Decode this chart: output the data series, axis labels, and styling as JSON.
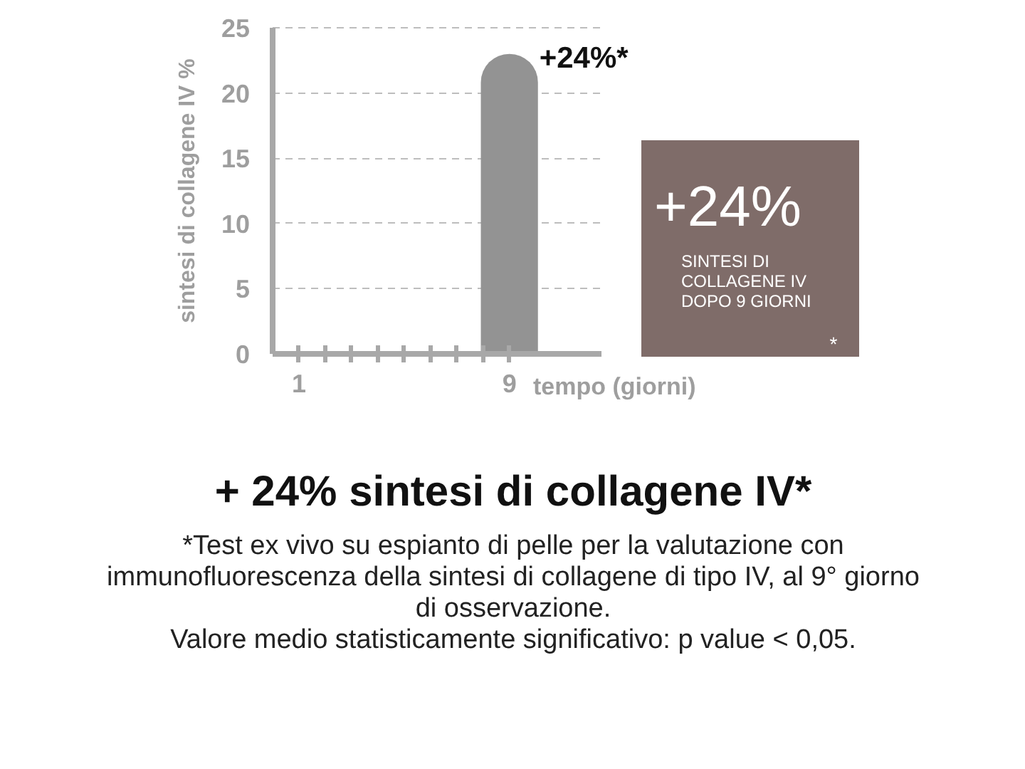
{
  "chart_data": [
    {
      "type": "bar",
      "title": "+ 24% sintesi di collagene IV*",
      "xlabel": "tempo (giorni)",
      "ylabel": "sintesi di collagene IV %",
      "x": [
        9
      ],
      "values": [
        23
      ],
      "color": "#939393",
      "xlim": [
        0,
        12.5
      ],
      "ylim": [
        0,
        25
      ],
      "xticks": [
        1,
        {
          "value": 2,
          "label": null
        },
        {
          "value": 3,
          "label": null
        },
        {
          "value": 4,
          "label": null
        },
        {
          "value": 5,
          "label": null
        },
        {
          "value": 6,
          "label": null
        },
        {
          "value": 7,
          "label": null
        },
        {
          "value": 8,
          "label": null
        },
        9
      ],
      "yticks": [
        0,
        5,
        10,
        15,
        20,
        25
      ],
      "grid": "y",
      "annotations": [
        {
          "text": "+24%*",
          "x": 9,
          "y": 23
        },
        "*Test ex vivo su espianto di pelle per la valutazione con immunofluorescenza della sintesi di collagene di tipo IV, al 9° giorno di osservazione.",
        "Valore medio statisticamente significativo: p value < 0,05."
      ]
    },
    {
      "type": "other",
      "color": "#7f6c69",
      "annotations": [
        "+24%",
        "SINTESI DI COLLAGENE IV DOPO 9 GIORNI",
        "*"
      ]
    }
  ]
}
